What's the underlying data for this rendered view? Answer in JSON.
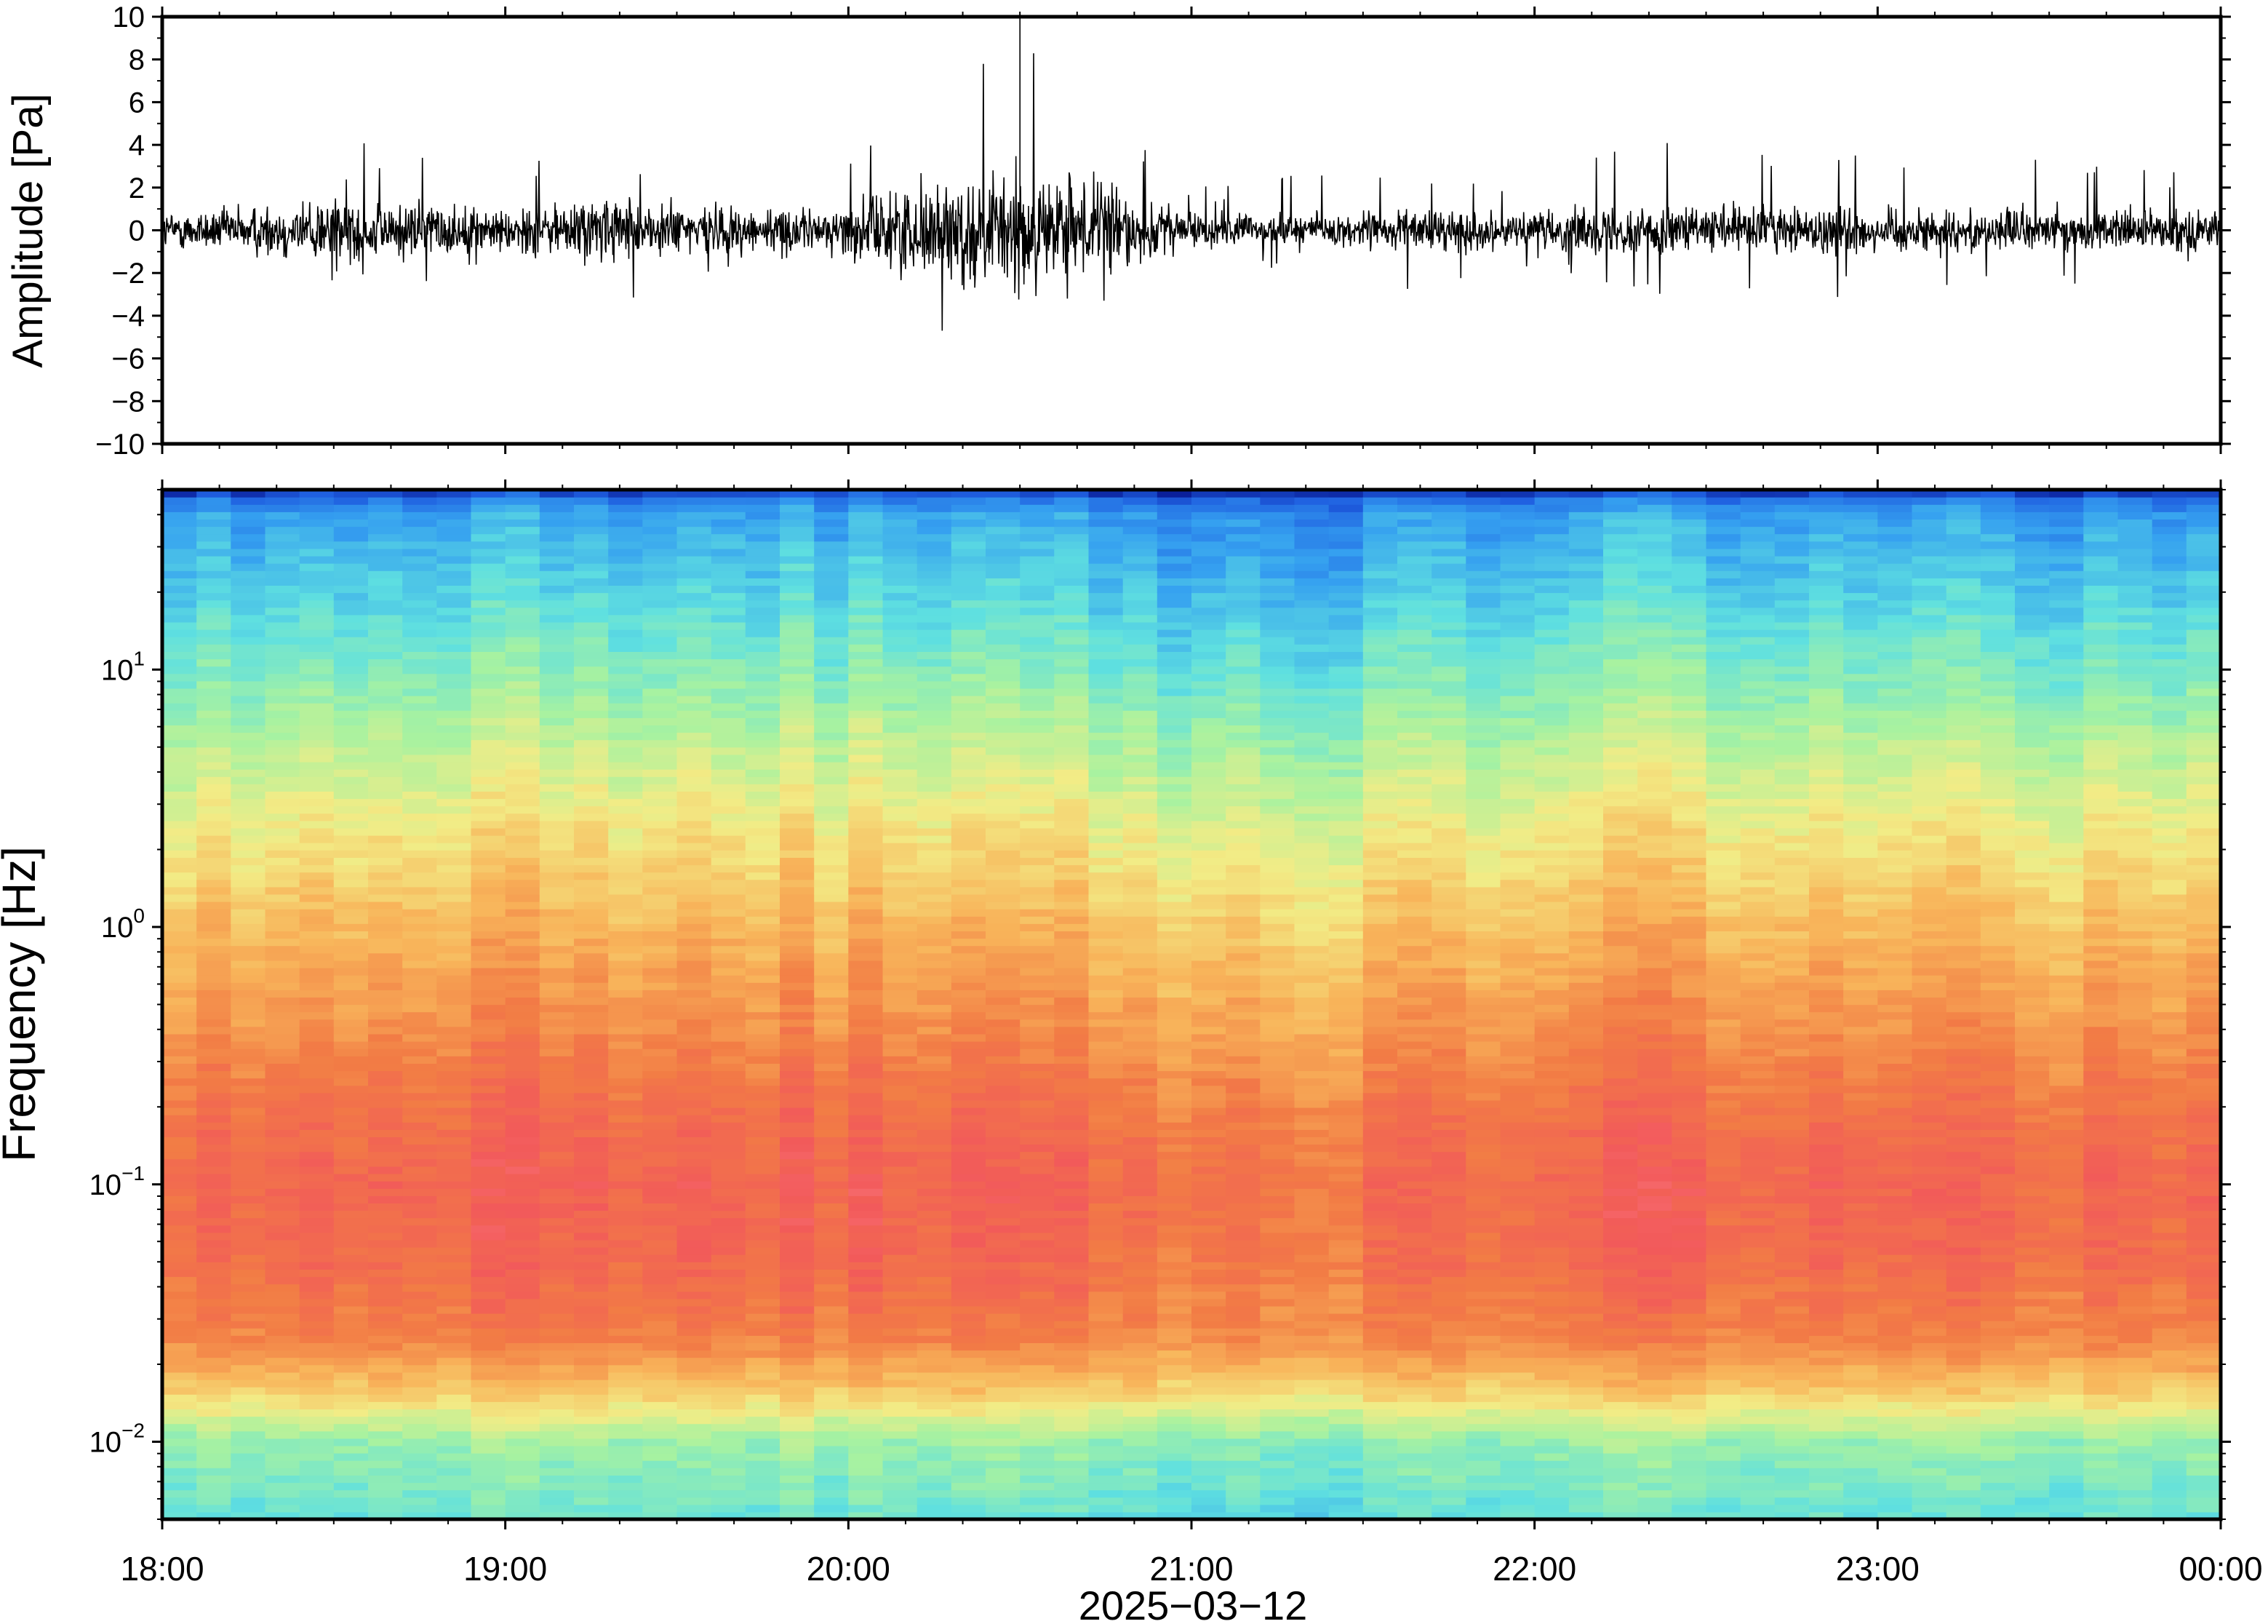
{
  "chart_data": [
    {
      "type": "line",
      "panel": "waveform",
      "ylabel": "Amplitude [Pa]",
      "ylim": [
        -10,
        10
      ],
      "yticks": [
        10,
        8,
        6,
        4,
        2,
        0,
        -2,
        -4,
        -6,
        -8,
        -10
      ],
      "ytick_labels": [
        "10",
        "8",
        "6",
        "4",
        "2",
        "0",
        "−2",
        "−4",
        "−6",
        "−8",
        "−10"
      ],
      "x_range_hours": [
        18,
        24
      ],
      "envelope": {
        "time_hours": [
          18.0,
          18.25,
          18.5,
          18.75,
          19.0,
          19.25,
          19.5,
          19.75,
          19.95,
          20.1,
          20.3,
          20.5,
          20.75,
          21.0,
          21.25,
          21.5,
          21.75,
          22.0,
          22.25,
          22.5,
          22.75,
          23.0,
          23.25,
          23.5,
          23.75,
          24.0
        ],
        "typical_pa": [
          0.9,
          1.2,
          1.8,
          1.4,
          1.1,
          1.7,
          1.4,
          1.2,
          1.0,
          2.0,
          2.6,
          3.0,
          2.4,
          0.9,
          0.8,
          0.9,
          1.0,
          0.9,
          1.2,
          1.1,
          1.3,
          1.2,
          1.0,
          1.1,
          1.0,
          1.0
        ],
        "max_positive_pa": [
          2.5,
          3.0,
          4.3,
          3.8,
          3.2,
          5.0,
          3.5,
          3.8,
          3.0,
          4.5,
          6.2,
          10.0,
          6.0,
          2.0,
          2.5,
          3.0,
          2.8,
          3.0,
          5.5,
          4.0,
          4.0,
          3.5,
          3.2,
          3.5,
          3.8,
          2.5
        ],
        "max_negative_pa": [
          -2.0,
          -2.5,
          -3.0,
          -4.0,
          -2.5,
          -3.8,
          -2.8,
          -2.5,
          -2.5,
          -3.5,
          -5.0,
          -4.5,
          -3.8,
          -2.0,
          -2.2,
          -2.5,
          -3.8,
          -2.0,
          -3.5,
          -2.8,
          -3.0,
          -3.7,
          -2.5,
          -2.5,
          -2.8,
          -2.0
        ]
      },
      "notable_spike": {
        "time": "20:30",
        "amplitude_pa": 10
      }
    },
    {
      "type": "heatmap",
      "panel": "spectrogram",
      "ylabel": "Frequency [Hz]",
      "y_scale": "log",
      "ylim_hz": [
        0.005,
        50
      ],
      "yticks_hz": [
        10,
        1,
        0.1,
        0.01
      ],
      "ytick_labels": [
        {
          "base": "10",
          "exp": "1"
        },
        {
          "base": "10",
          "exp": "0"
        },
        {
          "base": "10",
          "exp": "−1"
        },
        {
          "base": "10",
          "exp": "−2"
        }
      ],
      "colormap": [
        "#0a1f9a",
        "#1f5fe0",
        "#35a0f0",
        "#5fe0e0",
        "#a8f2a0",
        "#f2ec86",
        "#f8b45a",
        "#f27c45",
        "#f25a5a",
        "#ff8a92"
      ],
      "color_meaning": "power: blue low, red/pink high",
      "high_power_band_hz": [
        0.03,
        0.3
      ],
      "x_range_hours": [
        18,
        24
      ],
      "xticks": [
        "18:00",
        "19:00",
        "20:00",
        "21:00",
        "22:00",
        "23:00",
        "00:00"
      ],
      "xlabel": "2025−03−12"
    }
  ]
}
